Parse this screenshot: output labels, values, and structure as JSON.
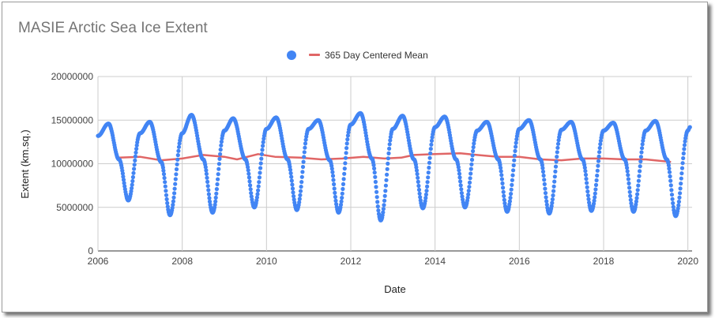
{
  "chart_data": {
    "type": "scatter",
    "title": "MASIE Arctic Sea Ice Extent",
    "xlabel": "Date",
    "ylabel": "Extent (km.sq.)",
    "xlim": [
      2006,
      2020.1
    ],
    "ylim": [
      0,
      20000000
    ],
    "x_ticks": [
      "2006",
      "2008",
      "2010",
      "2012",
      "2014",
      "2016",
      "2018",
      "2020"
    ],
    "y_ticks": [
      "0",
      "5000000",
      "10000000",
      "15000000",
      "20000000"
    ],
    "grid": true,
    "legend_position": "top",
    "series": [
      {
        "name": "",
        "style": "points",
        "color": "#4285f4",
        "x": [
          2006.0,
          2006.25,
          2006.5,
          2006.72,
          2007.0,
          2007.23,
          2007.5,
          2007.71,
          2008.0,
          2008.22,
          2008.5,
          2008.72,
          2009.0,
          2009.21,
          2009.5,
          2009.71,
          2010.0,
          2010.23,
          2010.5,
          2010.72,
          2011.0,
          2011.23,
          2011.5,
          2011.71,
          2012.0,
          2012.23,
          2012.5,
          2012.71,
          2013.0,
          2013.23,
          2013.5,
          2013.71,
          2014.0,
          2014.23,
          2014.5,
          2014.71,
          2015.0,
          2015.23,
          2015.5,
          2015.71,
          2016.0,
          2016.23,
          2016.5,
          2016.71,
          2017.0,
          2017.23,
          2017.5,
          2017.71,
          2018.0,
          2018.23,
          2018.5,
          2018.71,
          2019.0,
          2019.23,
          2019.5,
          2019.71,
          2020.0,
          2020.05
        ],
        "y": [
          13200000,
          14600000,
          10500000,
          5800000,
          13500000,
          14800000,
          10200000,
          4100000,
          13500000,
          15600000,
          10500000,
          4400000,
          13800000,
          15200000,
          10500000,
          5000000,
          14000000,
          15300000,
          10500000,
          4700000,
          14000000,
          15000000,
          10400000,
          4400000,
          14500000,
          15800000,
          10600000,
          3500000,
          14000000,
          15500000,
          10500000,
          4900000,
          14200000,
          15400000,
          10500000,
          5000000,
          13800000,
          14800000,
          10500000,
          4500000,
          14000000,
          15000000,
          10500000,
          4300000,
          13900000,
          14800000,
          10500000,
          4600000,
          13800000,
          14700000,
          10500000,
          4500000,
          13800000,
          14900000,
          10500000,
          4000000,
          13800000,
          14200000
        ]
      },
      {
        "name": "365 Day Centered Mean",
        "style": "line",
        "color": "#e06666",
        "x": [
          2006.5,
          2007.0,
          2007.5,
          2008.0,
          2008.5,
          2009.0,
          2009.3,
          2009.8,
          2010.2,
          2010.8,
          2011.3,
          2011.8,
          2012.3,
          2012.8,
          2013.2,
          2013.5,
          2014.0,
          2014.6,
          2015.0,
          2015.5,
          2016.0,
          2016.5,
          2017.0,
          2017.5,
          2018.0,
          2018.5,
          2019.0,
          2019.6
        ],
        "y": [
          10700000,
          10800000,
          10400000,
          10600000,
          11000000,
          10800000,
          10500000,
          11100000,
          10800000,
          10700000,
          10500000,
          10600000,
          10800000,
          10600000,
          10700000,
          11000000,
          11100000,
          11200000,
          11000000,
          10800000,
          10800000,
          10500000,
          10400000,
          10600000,
          10600000,
          10500000,
          10500000,
          10200000
        ]
      }
    ]
  }
}
